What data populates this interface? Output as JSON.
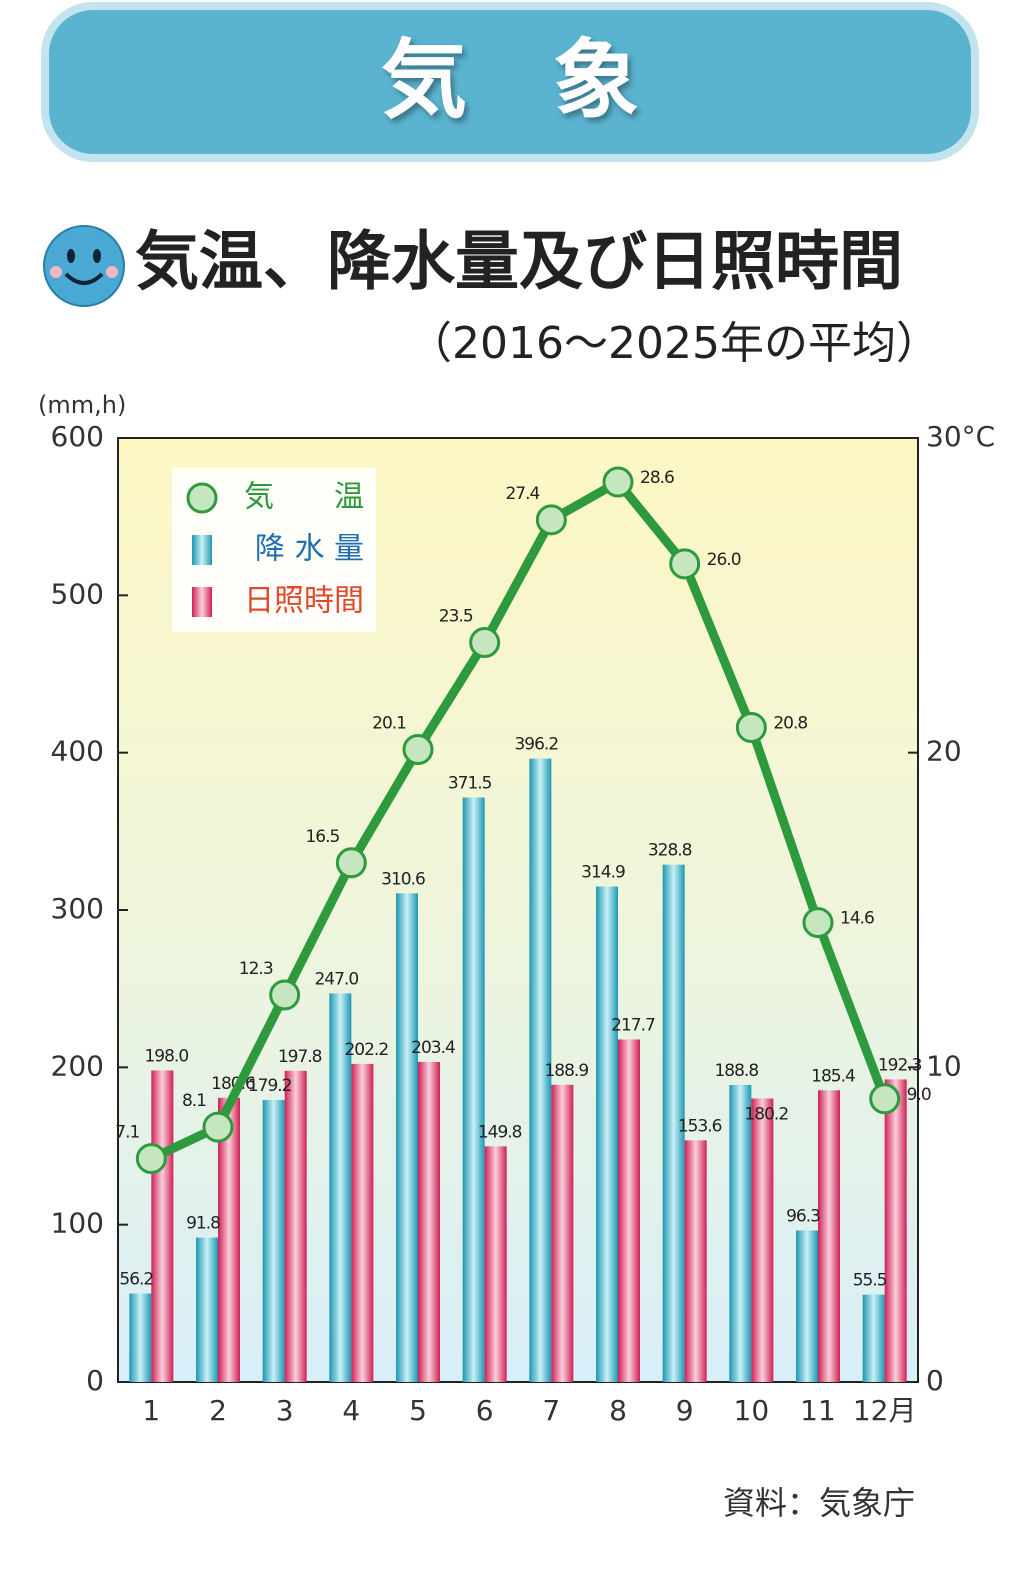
{
  "banner": "気　象",
  "chart_data": {
    "type": "bar",
    "title": "気温、降水量及び日照時間",
    "subtitle": "（2016～2025年の平均）",
    "y_label": "(mm,h)",
    "source": "資料：気象庁",
    "categories": [
      "1",
      "2",
      "3",
      "4",
      "5",
      "6",
      "7",
      "8",
      "9",
      "10",
      "11",
      "12月"
    ],
    "series": [
      {
        "name": "気　　温",
        "type": "line",
        "axis": "y2",
        "color": "#2e9a3e",
        "values": [
          7.1,
          8.1,
          12.3,
          16.5,
          20.1,
          23.5,
          27.4,
          28.6,
          26.0,
          20.8,
          14.6,
          9.0
        ],
        "value_labels": [
          "7.1",
          "8.1",
          "12.3",
          "16.5",
          "20.1",
          "23.5",
          "27.4",
          "28.6",
          "26.0",
          "20.8",
          "14.6",
          "9.0"
        ]
      },
      {
        "name": "降 水 量",
        "type": "bar",
        "color": "#33aec6",
        "values": [
          56.2,
          91.8,
          179.2,
          247.0,
          310.6,
          371.5,
          396.2,
          314.9,
          328.8,
          188.8,
          96.3,
          55.5
        ],
        "value_labels": [
          "56.2",
          "91.8",
          "179.2",
          "247.0",
          "310.6",
          "371.5",
          "396.2",
          "314.9",
          "328.8",
          "188.8",
          "96.3",
          "55.5"
        ]
      },
      {
        "name": "日照時間",
        "type": "bar",
        "color": "#de2e68",
        "values": [
          198.0,
          180.6,
          197.8,
          202.2,
          203.4,
          149.8,
          188.9,
          217.7,
          153.6,
          180.2,
          185.4,
          192.3
        ],
        "value_labels": [
          "198.0",
          "180.6",
          "197.8",
          "202.2",
          "203.4",
          "149.8",
          "188.9",
          "217.7",
          "153.6",
          "180.2",
          "185.4",
          "192.3"
        ]
      }
    ],
    "ylim": [
      0,
      600
    ],
    "yticks": [
      0,
      100,
      200,
      300,
      400,
      500,
      600
    ],
    "y2lim": [
      0,
      30
    ],
    "y2ticks": [
      0,
      10,
      20,
      {
        "value": 30,
        "label": "30°C"
      }
    ],
    "legend": "top-left"
  }
}
